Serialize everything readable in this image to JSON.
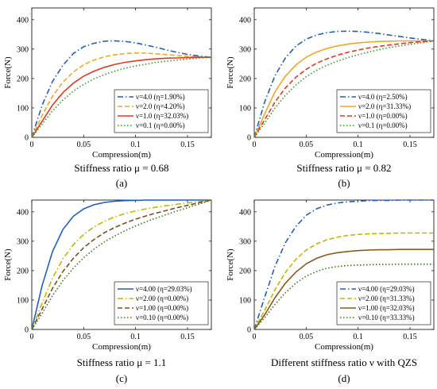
{
  "chart_data": [
    {
      "type": "line",
      "caption": "Stiffness ratio μ = 0.68",
      "panel_label": "(a)",
      "xlabel": "Compression(m)",
      "ylabel": "Force(N)",
      "xlim": [
        0,
        0.173
      ],
      "ylim": [
        0,
        440
      ],
      "xticks": [
        0,
        0.05,
        0.1,
        0.15
      ],
      "xtick_labels": [
        "0",
        "0.05",
        "0.1",
        "0.15"
      ],
      "yticks": [
        0,
        100,
        200,
        300,
        400
      ],
      "ytick_labels": [
        "0",
        "100",
        "200",
        "300",
        "400"
      ],
      "grid": false,
      "legend_position": "bottom-right",
      "series": [
        {
          "name": "ν=4.0 (η=1.90%)",
          "color": "#1f5fbf",
          "dash": "dashdot",
          "x": [
            0,
            0.01,
            0.02,
            0.03,
            0.04,
            0.05,
            0.06,
            0.07,
            0.08,
            0.09,
            0.1,
            0.11,
            0.12,
            0.13,
            0.14,
            0.15,
            0.16,
            0.173
          ],
          "y": [
            0,
            110,
            190,
            245,
            285,
            308,
            320,
            327,
            328,
            326,
            321,
            314,
            306,
            297,
            289,
            282,
            277,
            272
          ]
        },
        {
          "name": "ν=2.0 (η=4.20%)",
          "color": "#f5a623",
          "dash": "dashed",
          "x": [
            0,
            0.01,
            0.02,
            0.03,
            0.04,
            0.05,
            0.06,
            0.07,
            0.08,
            0.09,
            0.1,
            0.11,
            0.12,
            0.13,
            0.14,
            0.15,
            0.16,
            0.173
          ],
          "y": [
            0,
            75,
            140,
            188,
            222,
            247,
            263,
            274,
            281,
            285,
            287,
            286,
            284,
            281,
            278,
            276,
            274,
            272
          ]
        },
        {
          "name": "ν=1.0 (η=32.03%)",
          "color": "#e03a1e",
          "dash": "solid",
          "x": [
            0,
            0.01,
            0.02,
            0.03,
            0.04,
            0.05,
            0.06,
            0.07,
            0.08,
            0.09,
            0.1,
            0.11,
            0.12,
            0.13,
            0.14,
            0.15,
            0.16,
            0.173
          ],
          "y": [
            0,
            55,
            110,
            152,
            184,
            208,
            225,
            238,
            248,
            255,
            260,
            264,
            267,
            269,
            270,
            271,
            272,
            272
          ]
        },
        {
          "name": "ν=0.1 (η=0.00%)",
          "color": "#3a9a2a",
          "dash": "dotted",
          "x": [
            0,
            0.01,
            0.02,
            0.03,
            0.04,
            0.05,
            0.06,
            0.07,
            0.08,
            0.09,
            0.1,
            0.11,
            0.12,
            0.13,
            0.14,
            0.15,
            0.16,
            0.173
          ],
          "y": [
            0,
            45,
            90,
            127,
            157,
            180,
            199,
            213,
            225,
            235,
            243,
            249,
            255,
            259,
            263,
            266,
            269,
            272
          ]
        }
      ]
    },
    {
      "type": "line",
      "caption": "Stiffness ratio μ = 0.82",
      "panel_label": "(b)",
      "xlabel": "Compression(m)",
      "ylabel": "Force(N)",
      "xlim": [
        0,
        0.173
      ],
      "ylim": [
        0,
        440
      ],
      "xticks": [
        0,
        0.05,
        0.1,
        0.15
      ],
      "xtick_labels": [
        "0",
        "0.05",
        "0.1",
        "0.15"
      ],
      "yticks": [
        0,
        100,
        200,
        300,
        400
      ],
      "ytick_labels": [
        "0",
        "100",
        "200",
        "300",
        "400"
      ],
      "grid": false,
      "legend_position": "bottom-right",
      "series": [
        {
          "name": "ν=4.0 (η=2.50%)",
          "color": "#1f5fbf",
          "dash": "dashdot",
          "x": [
            0,
            0.01,
            0.02,
            0.03,
            0.04,
            0.05,
            0.06,
            0.07,
            0.08,
            0.09,
            0.1,
            0.11,
            0.12,
            0.13,
            0.14,
            0.15,
            0.16,
            0.173
          ],
          "y": [
            0,
            120,
            210,
            270,
            310,
            334,
            348,
            356,
            360,
            361,
            360,
            357,
            353,
            348,
            343,
            338,
            334,
            328
          ]
        },
        {
          "name": "ν=2.0 (η=31.33%)",
          "color": "#f5a623",
          "dash": "solid",
          "x": [
            0,
            0.01,
            0.02,
            0.03,
            0.04,
            0.05,
            0.06,
            0.07,
            0.08,
            0.09,
            0.1,
            0.11,
            0.12,
            0.13,
            0.14,
            0.15,
            0.16,
            0.173
          ],
          "y": [
            0,
            80,
            155,
            208,
            246,
            272,
            290,
            302,
            311,
            317,
            321,
            324,
            326,
            327,
            328,
            328,
            328,
            328
          ]
        },
        {
          "name": "ν=1.0 (η=0.00%)",
          "color": "#e03a1e",
          "dash": "dashed",
          "x": [
            0,
            0.01,
            0.02,
            0.03,
            0.04,
            0.05,
            0.06,
            0.07,
            0.08,
            0.09,
            0.1,
            0.11,
            0.12,
            0.13,
            0.14,
            0.15,
            0.16,
            0.173
          ],
          "y": [
            0,
            60,
            120,
            168,
            204,
            231,
            252,
            267,
            279,
            289,
            297,
            304,
            309,
            314,
            318,
            322,
            325,
            328
          ]
        },
        {
          "name": "ν=0.1 (η=0.00%)",
          "color": "#3a9a2a",
          "dash": "dotted",
          "x": [
            0,
            0.01,
            0.02,
            0.03,
            0.04,
            0.05,
            0.06,
            0.07,
            0.08,
            0.09,
            0.1,
            0.11,
            0.12,
            0.13,
            0.14,
            0.15,
            0.16,
            0.173
          ],
          "y": [
            0,
            48,
            100,
            143,
            178,
            206,
            228,
            245,
            259,
            271,
            281,
            290,
            298,
            305,
            311,
            316,
            321,
            328
          ]
        }
      ]
    },
    {
      "type": "line",
      "caption": "Stiffness ratio μ = 1.1",
      "panel_label": "(c)",
      "xlabel": "Compression(m)",
      "ylabel": "Force(N)",
      "xlim": [
        0,
        0.173
      ],
      "ylim": [
        0,
        440
      ],
      "xticks": [
        0,
        0.05,
        0.1,
        0.15
      ],
      "xtick_labels": [
        "0",
        "0.05",
        "0.1",
        "0.15"
      ],
      "yticks": [
        0,
        100,
        200,
        300,
        400
      ],
      "ytick_labels": [
        "0",
        "100",
        "200",
        "300",
        "400"
      ],
      "grid": false,
      "legend_position": "bottom-right",
      "series": [
        {
          "name": "ν=4.00 (η=29.03%)",
          "color": "#1f5fbf",
          "dash": "solid",
          "x": [
            0,
            0.01,
            0.02,
            0.03,
            0.04,
            0.05,
            0.06,
            0.07,
            0.08,
            0.09,
            0.1,
            0.11,
            0.12,
            0.13,
            0.14,
            0.15,
            0.16,
            0.173
          ],
          "y": [
            0,
            150,
            265,
            340,
            385,
            410,
            424,
            432,
            436,
            438,
            439,
            440,
            440,
            440,
            440,
            440,
            440,
            440
          ]
        },
        {
          "name": "ν=2.00 (η=0.00%)",
          "color": "#c8b400",
          "dash": "dashdot",
          "x": [
            0,
            0.01,
            0.02,
            0.03,
            0.04,
            0.05,
            0.06,
            0.07,
            0.08,
            0.09,
            0.1,
            0.11,
            0.12,
            0.13,
            0.14,
            0.15,
            0.16,
            0.173
          ],
          "y": [
            0,
            90,
            175,
            240,
            288,
            323,
            349,
            368,
            383,
            394,
            403,
            410,
            416,
            421,
            426,
            430,
            434,
            440
          ]
        },
        {
          "name": "ν=1.00 (η=0.00%)",
          "color": "#7a5020",
          "dash": "dashed",
          "x": [
            0,
            0.01,
            0.02,
            0.03,
            0.04,
            0.05,
            0.06,
            0.07,
            0.08,
            0.09,
            0.1,
            0.11,
            0.12,
            0.13,
            0.14,
            0.15,
            0.16,
            0.173
          ],
          "y": [
            0,
            70,
            140,
            197,
            242,
            278,
            306,
            329,
            347,
            362,
            375,
            386,
            396,
            405,
            414,
            422,
            430,
            440
          ]
        },
        {
          "name": "ν=0.10 (η=0.00%)",
          "color": "#3a7a1a",
          "dash": "dotted",
          "x": [
            0,
            0.01,
            0.02,
            0.03,
            0.04,
            0.05,
            0.06,
            0.07,
            0.08,
            0.09,
            0.1,
            0.11,
            0.12,
            0.13,
            0.14,
            0.15,
            0.16,
            0.173
          ],
          "y": [
            0,
            55,
            115,
            166,
            208,
            244,
            273,
            298,
            318,
            336,
            352,
            366,
            379,
            391,
            403,
            414,
            425,
            440
          ]
        }
      ]
    },
    {
      "type": "line",
      "caption": "Different stiffness ratio ν with QZS",
      "panel_label": "(d)",
      "xlabel": "Compression(m)",
      "ylabel": "Force(N)",
      "xlim": [
        0,
        0.173
      ],
      "ylim": [
        0,
        440
      ],
      "xticks": [
        0,
        0.05,
        0.1,
        0.15
      ],
      "xtick_labels": [
        "0",
        "0.05",
        "0.1",
        "0.15"
      ],
      "yticks": [
        0,
        100,
        200,
        300,
        400
      ],
      "ytick_labels": [
        "0",
        "100",
        "200",
        "300",
        "400"
      ],
      "grid": false,
      "legend_position": "bottom-right",
      "series": [
        {
          "name": "ν=4.00 (η=29.03%)",
          "color": "#1f5fbf",
          "dash": "dashdot",
          "x": [
            0,
            0.01,
            0.02,
            0.03,
            0.04,
            0.05,
            0.06,
            0.07,
            0.08,
            0.09,
            0.1,
            0.11,
            0.12,
            0.13,
            0.14,
            0.15,
            0.16,
            0.173
          ],
          "y": [
            0,
            110,
            215,
            295,
            350,
            388,
            410,
            423,
            430,
            434,
            436,
            438,
            439,
            439,
            440,
            440,
            440,
            440
          ]
        },
        {
          "name": "ν=2.00 (η=31.33%)",
          "color": "#c8b400",
          "dash": "dashed",
          "x": [
            0,
            0.01,
            0.02,
            0.03,
            0.04,
            0.05,
            0.06,
            0.07,
            0.08,
            0.09,
            0.1,
            0.11,
            0.12,
            0.13,
            0.14,
            0.15,
            0.16,
            0.173
          ],
          "y": [
            0,
            65,
            135,
            194,
            238,
            270,
            291,
            305,
            314,
            320,
            323,
            325,
            326,
            327,
            328,
            328,
            328,
            328
          ]
        },
        {
          "name": "ν=1.00 (η=32.03%)",
          "color": "#8b5a1e",
          "dash": "solid",
          "x": [
            0,
            0.01,
            0.02,
            0.03,
            0.04,
            0.05,
            0.06,
            0.07,
            0.08,
            0.09,
            0.1,
            0.11,
            0.12,
            0.13,
            0.14,
            0.15,
            0.16,
            0.173
          ],
          "y": [
            0,
            50,
            108,
            157,
            195,
            223,
            242,
            254,
            261,
            265,
            268,
            270,
            271,
            271,
            272,
            272,
            272,
            272
          ]
        },
        {
          "name": "ν=0.10 (η=33.33%)",
          "color": "#3a7a1a",
          "dash": "dotted",
          "x": [
            0,
            0.01,
            0.02,
            0.03,
            0.04,
            0.05,
            0.06,
            0.07,
            0.08,
            0.09,
            0.1,
            0.11,
            0.12,
            0.13,
            0.14,
            0.15,
            0.16,
            0.173
          ],
          "y": [
            0,
            40,
            85,
            125,
            157,
            181,
            197,
            208,
            214,
            217,
            219,
            220,
            221,
            221,
            222,
            222,
            222,
            222
          ]
        }
      ]
    }
  ]
}
